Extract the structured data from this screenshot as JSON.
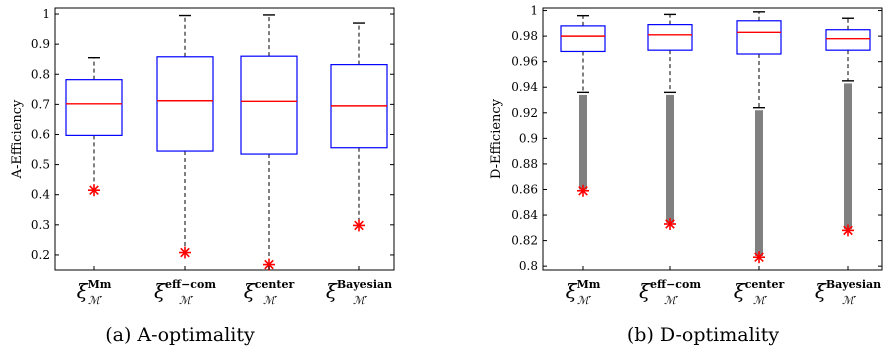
{
  "chart_data": [
    {
      "type": "boxplot",
      "caption": "(a) A-optimality",
      "ylabel": "A-Efficiency",
      "ylim": [
        0.15,
        1.02
      ],
      "yticks": [
        0.2,
        0.3,
        0.4,
        0.5,
        0.6,
        0.7,
        0.8,
        0.9,
        1
      ],
      "ytick_labels": [
        "0.2",
        "0.3",
        "0.4",
        "0.5",
        "0.6",
        "0.7",
        "0.8",
        "0.9",
        "1"
      ],
      "categories": [
        {
          "symbol": "ξ",
          "sup": "Mm",
          "sub": "ℳ′"
        },
        {
          "symbol": "ξ",
          "sup": "eff−com",
          "sub": "ℳ′"
        },
        {
          "symbol": "ξ",
          "sup": "center",
          "sub": "ℳ′"
        },
        {
          "symbol": "ξ",
          "sup": "Bayesian",
          "sub": "ℳ′"
        }
      ],
      "boxes": [
        {
          "q1": 0.597,
          "median": 0.702,
          "q3": 0.782,
          "whisker_low": 0.415,
          "whisker_high": 0.855,
          "outliers": [
            0.415
          ]
        },
        {
          "q1": 0.545,
          "median": 0.712,
          "q3": 0.858,
          "whisker_low": 0.208,
          "whisker_high": 0.995,
          "outliers": [
            0.208
          ]
        },
        {
          "q1": 0.535,
          "median": 0.71,
          "q3": 0.86,
          "whisker_low": 0.168,
          "whisker_high": 0.997,
          "outliers": [
            0.168
          ]
        },
        {
          "q1": 0.556,
          "median": 0.695,
          "q3": 0.832,
          "whisker_low": 0.298,
          "whisker_high": 0.97,
          "outliers": [
            0.298
          ]
        }
      ],
      "colors": {
        "box": "#0000ff",
        "median": "#ff0000",
        "outlier_extreme": "#ff0000",
        "outlier_dense": "#808080",
        "whisker": "#000000"
      }
    },
    {
      "type": "boxplot",
      "caption": "(b) D-optimality",
      "ylabel": "D-Efficiency",
      "ylim": [
        0.797,
        1.002
      ],
      "yticks": [
        0.8,
        0.82,
        0.84,
        0.86,
        0.88,
        0.9,
        0.92,
        0.94,
        0.96,
        0.98,
        1
      ],
      "ytick_labels": [
        "0.8",
        "0.82",
        "0.84",
        "0.86",
        "0.88",
        "0.9",
        "0.92",
        "0.94",
        "0.96",
        "0.98",
        "1"
      ],
      "categories": [
        {
          "symbol": "ξ",
          "sup": "Mm",
          "sub": "ℳ′"
        },
        {
          "symbol": "ξ",
          "sup": "eff−com",
          "sub": "ℳ′"
        },
        {
          "symbol": "ξ",
          "sup": "center",
          "sub": "ℳ′"
        },
        {
          "symbol": "ξ",
          "sup": "Bayesian",
          "sub": "ℳ′"
        }
      ],
      "boxes": [
        {
          "q1": 0.968,
          "median": 0.98,
          "q3": 0.988,
          "whisker_low": 0.936,
          "whisker_high": 0.996,
          "outlier_range": [
            0.86,
            0.934
          ],
          "outliers": [
            0.859
          ]
        },
        {
          "q1": 0.969,
          "median": 0.981,
          "q3": 0.989,
          "whisker_low": 0.936,
          "whisker_high": 0.997,
          "outlier_range": [
            0.834,
            0.934
          ],
          "outliers": [
            0.833
          ]
        },
        {
          "q1": 0.966,
          "median": 0.983,
          "q3": 0.992,
          "whisker_low": 0.924,
          "whisker_high": 0.999,
          "outlier_range": [
            0.808,
            0.922
          ],
          "outliers": [
            0.807
          ]
        },
        {
          "q1": 0.969,
          "median": 0.978,
          "q3": 0.985,
          "whisker_low": 0.945,
          "whisker_high": 0.994,
          "outlier_range": [
            0.829,
            0.943
          ],
          "outliers": [
            0.828
          ]
        }
      ],
      "colors": {
        "box": "#0000ff",
        "median": "#ff0000",
        "outlier_extreme": "#ff0000",
        "outlier_dense": "#808080",
        "whisker": "#000000"
      }
    }
  ]
}
